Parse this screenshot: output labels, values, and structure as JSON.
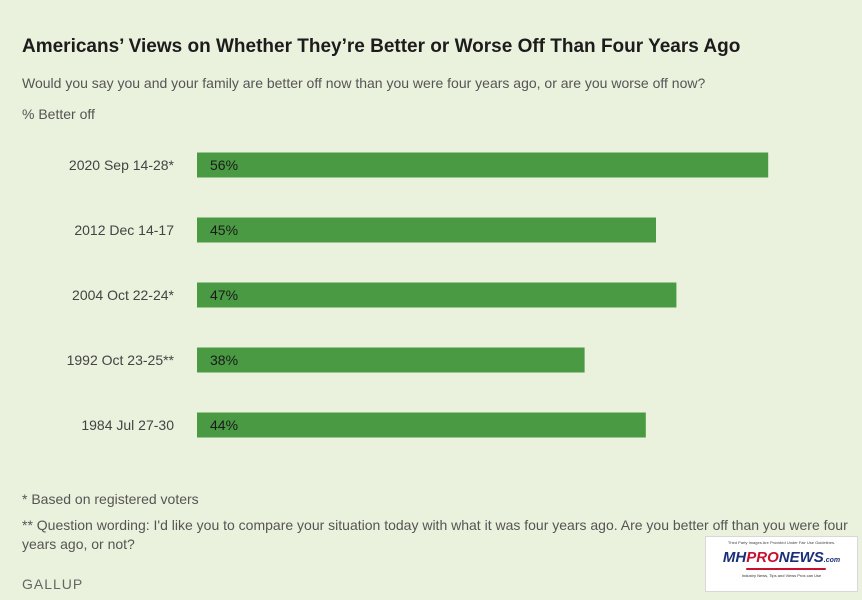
{
  "chart_data": {
    "type": "bar",
    "orientation": "horizontal",
    "title": "Americans’ Views on Whether They’re Better or Worse Off Than Four Years Ago",
    "subtitle": "Would you say you and your family are better off now than you were four years ago, or are you worse off now?",
    "measure_label": "% Better off",
    "categories": [
      "2020 Sep 14-28*",
      "2012 Dec 14-17",
      "2004 Oct 22-24*",
      "1992 Oct 23-25**",
      "1984 Jul 27-30"
    ],
    "values": [
      56,
      45,
      47,
      38,
      44
    ],
    "value_labels": [
      "56%",
      "45%",
      "47%",
      "38%",
      "44%"
    ],
    "xlim": [
      0,
      100
    ],
    "grid": false,
    "bar_color": "#4a9a44"
  },
  "footnotes": {
    "registered": "* Based on registered voters",
    "wording": "** Question wording: I'd like you to compare your situation today with what it was four years ago. Are you better off than you were four years ago, or not?"
  },
  "source": "GALLUP",
  "watermark": {
    "caption": "Third Party Images Are Provided Under Fair Use Guidelines.",
    "logo_mh": "MH",
    "logo_pro": "PRO",
    "logo_news": "NEWS",
    "logo_com": ".com",
    "tagline": "Industry News, Tips and Views Pros can Use"
  }
}
